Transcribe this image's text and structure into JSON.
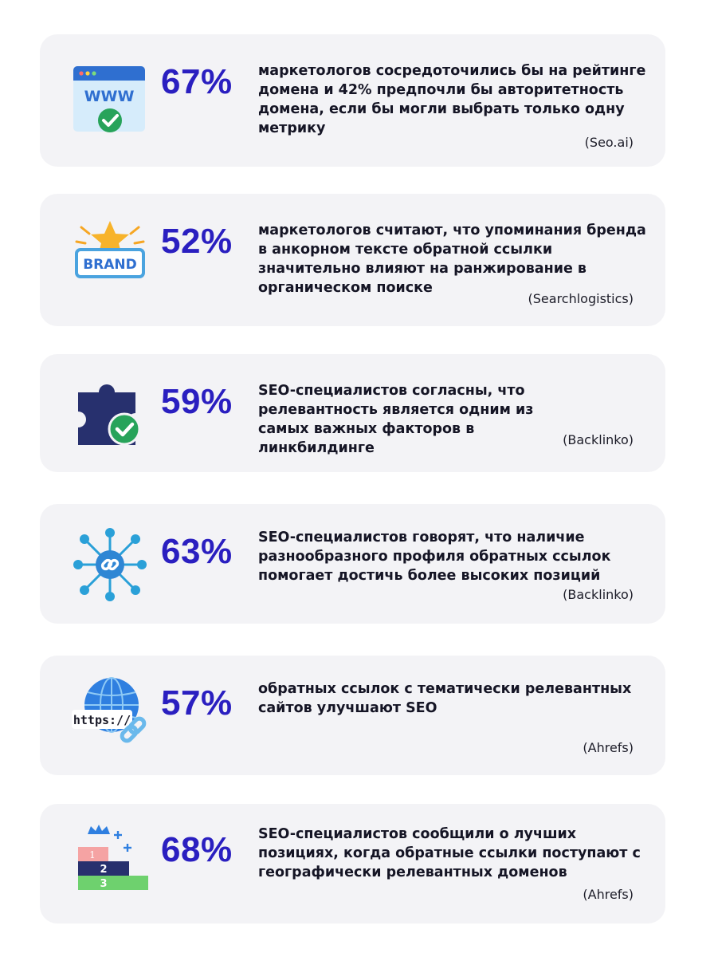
{
  "stats": [
    {
      "percent": "67%",
      "text": "маркетологов сосредоточились бы на рейтинге домена и 42% предпочли бы авторитетность домена, если бы могли выбрать только одну метрику",
      "source": "(Seo.ai)",
      "icon": "www-browser-check-icon"
    },
    {
      "percent": "52%",
      "text": "маркетологов считают, что упоминания бренда в анкорном тексте обратной ссылки значительно влияют на ранжирование в органическом поиске",
      "source": "(Searchlogistics)",
      "icon": "brand-star-icon",
      "icon_label": "BRAND"
    },
    {
      "percent": "59%",
      "text": "SEO-специалистов согласны, что релевантность является одним из самых важных факторов в линкбилдинге",
      "source": "(Backlinko)",
      "icon": "puzzle-check-icon"
    },
    {
      "percent": "63%",
      "text": "SEO-специалистов говорят, что наличие разнообразного профиля обратных ссылок помогает достичь более высоких позиций",
      "source": "(Backlinko)",
      "icon": "link-network-icon"
    },
    {
      "percent": "57%",
      "text": "обратных ссылок с тематически релевантных сайтов улучшают SEO",
      "source": "(Ahrefs)",
      "icon": "https-globe-link-icon",
      "icon_label": "https://"
    },
    {
      "percent": "68%",
      "text": "SEO-специалистов сообщили о лучших позициях, когда обратные ссылки поступают с географически релевантных доменов",
      "source": "(Ahrefs)",
      "icon": "ranking-podium-icon",
      "icon_labels": [
        "1",
        "2",
        "3"
      ]
    }
  ],
  "colors": {
    "accent": "#2a1fc0",
    "card_bg": "#f3f3f6",
    "green": "#27a35a",
    "navy": "#27306e",
    "light_blue": "#5bb8e8"
  }
}
